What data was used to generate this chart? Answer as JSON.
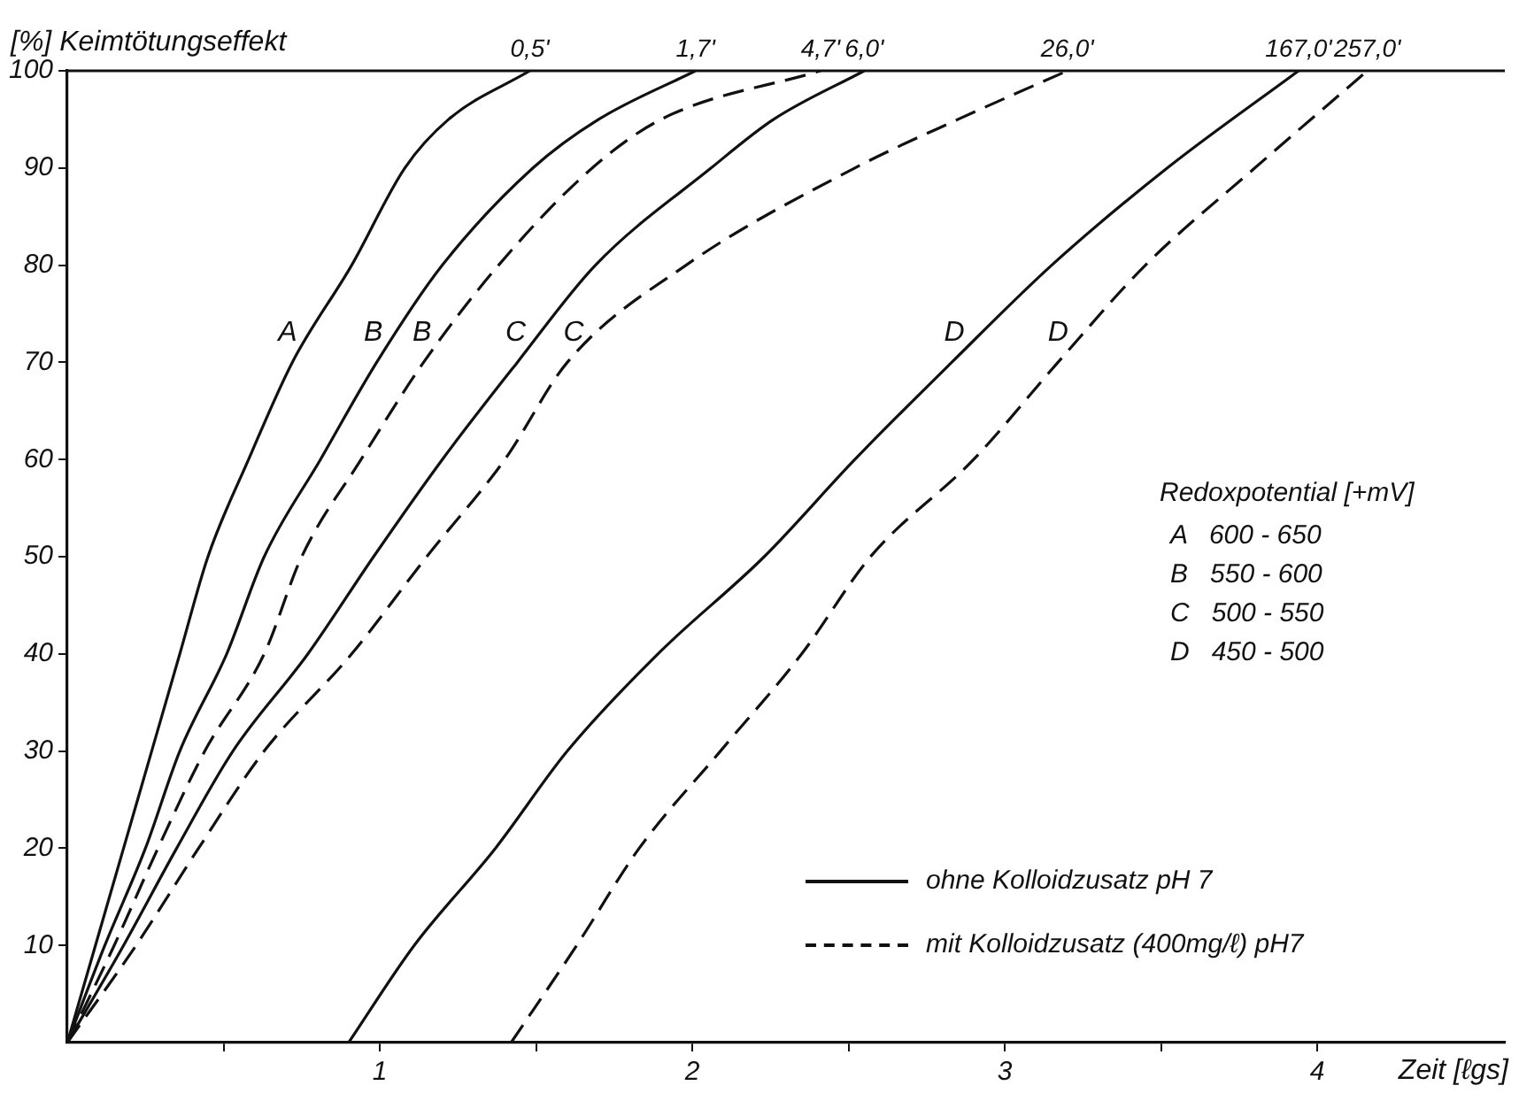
{
  "chart_data": {
    "type": "line",
    "xlabel": "Zeit [ℓgs]",
    "ylabel": "[%] Keimtötungseffekt",
    "legend_title": "Redoxpotential [+mV]",
    "xlim": [
      0,
      4.6
    ],
    "ylim": [
      0,
      100
    ],
    "xticks": [
      {
        "value": 0.5,
        "label": null
      },
      1,
      {
        "value": 1.5,
        "label": null
      },
      2,
      {
        "value": 2.5,
        "label": null
      },
      3,
      {
        "value": 3.5,
        "label": null
      },
      4
    ],
    "yticks": [
      10,
      20,
      30,
      40,
      50,
      60,
      70,
      80,
      90,
      100
    ],
    "grid": false,
    "legend": false,
    "marker": "none",
    "ref_lines": [
      {
        "axis": "y",
        "value": 100,
        "color": "#111111"
      }
    ],
    "series": [
      {
        "name": "A",
        "color": "#111111",
        "line_style": "solid",
        "x": [
          0,
          0.09,
          0.18,
          0.27,
          0.36,
          0.45,
          0.58,
          0.72,
          0.91,
          1.08,
          1.22,
          1.48
        ],
        "values": [
          0,
          10,
          20,
          30,
          40,
          50,
          60,
          70,
          80,
          90,
          95,
          100
        ]
      },
      {
        "name": "B",
        "color": "#111111",
        "line_style": "solid",
        "x": [
          0,
          0.12,
          0.25,
          0.36,
          0.51,
          0.63,
          0.81,
          0.99,
          1.2,
          1.49,
          1.7,
          2.01
        ],
        "values": [
          0,
          10,
          20,
          30,
          40,
          50,
          60,
          70,
          80,
          90,
          95,
          100
        ]
      },
      {
        "name": "B",
        "color": "#111111",
        "line_style": "dashed",
        "x": [
          0,
          0.15,
          0.29,
          0.44,
          0.63,
          0.75,
          0.94,
          1.14,
          1.38,
          1.68,
          1.9,
          2.41
        ],
        "values": [
          0,
          10,
          20,
          30,
          40,
          50,
          60,
          70,
          80,
          90,
          95,
          100
        ]
      },
      {
        "name": "C",
        "color": "#111111",
        "line_style": "solid",
        "x": [
          0,
          0.18,
          0.35,
          0.53,
          0.77,
          0.98,
          1.2,
          1.44,
          1.69,
          2.06,
          2.26,
          2.55
        ],
        "values": [
          0,
          10,
          20,
          30,
          40,
          50,
          60,
          70,
          80,
          90,
          95,
          100
        ]
      },
      {
        "name": "C",
        "color": "#111111",
        "line_style": "dashed",
        "x": [
          0,
          0.22,
          0.42,
          0.63,
          0.91,
          1.15,
          1.4,
          1.6,
          1.98,
          2.52,
          2.85,
          3.2
        ],
        "values": [
          0,
          10,
          20,
          30,
          40,
          50,
          60,
          70,
          80,
          90,
          95,
          100
        ]
      },
      {
        "name": "D",
        "color": "#111111",
        "line_style": "solid",
        "x": [
          0.9,
          1.11,
          1.37,
          1.6,
          1.89,
          2.23,
          2.52,
          2.83,
          3.15,
          3.52,
          3.94
        ],
        "values": [
          0,
          10,
          20,
          30,
          40,
          50,
          60,
          70,
          80,
          90,
          100
        ]
      },
      {
        "name": "D",
        "color": "#111111",
        "line_style": "dashed",
        "x": [
          1.42,
          1.63,
          1.83,
          2.09,
          2.35,
          2.57,
          2.9,
          3.17,
          3.45,
          3.8,
          4.16
        ],
        "values": [
          0,
          10,
          20,
          30,
          40,
          50,
          60,
          70,
          80,
          90,
          100
        ]
      }
    ],
    "annotations": [
      {
        "text": "0,5'",
        "x": 1.48,
        "y": 100
      },
      {
        "text": "1,7'",
        "x": 2.01,
        "y": 100
      },
      {
        "text": "4,7'",
        "x": 2.41,
        "y": 100
      },
      {
        "text": "6,0'",
        "x": 2.55,
        "y": 100
      },
      {
        "text": "26,0'",
        "x": 3.2,
        "y": 100
      },
      {
        "text": "167,0'",
        "x": 3.94,
        "y": 100
      },
      {
        "text": "257,0'",
        "x": 4.16,
        "y": 100
      },
      "A   600 - 650",
      "B   550 - 600",
      "C   500 - 550",
      "D   450 - 500",
      "ohne Kolloidzusatz pH 7",
      "mit Kolloidzusatz (400mg/ℓ) pH7"
    ]
  }
}
